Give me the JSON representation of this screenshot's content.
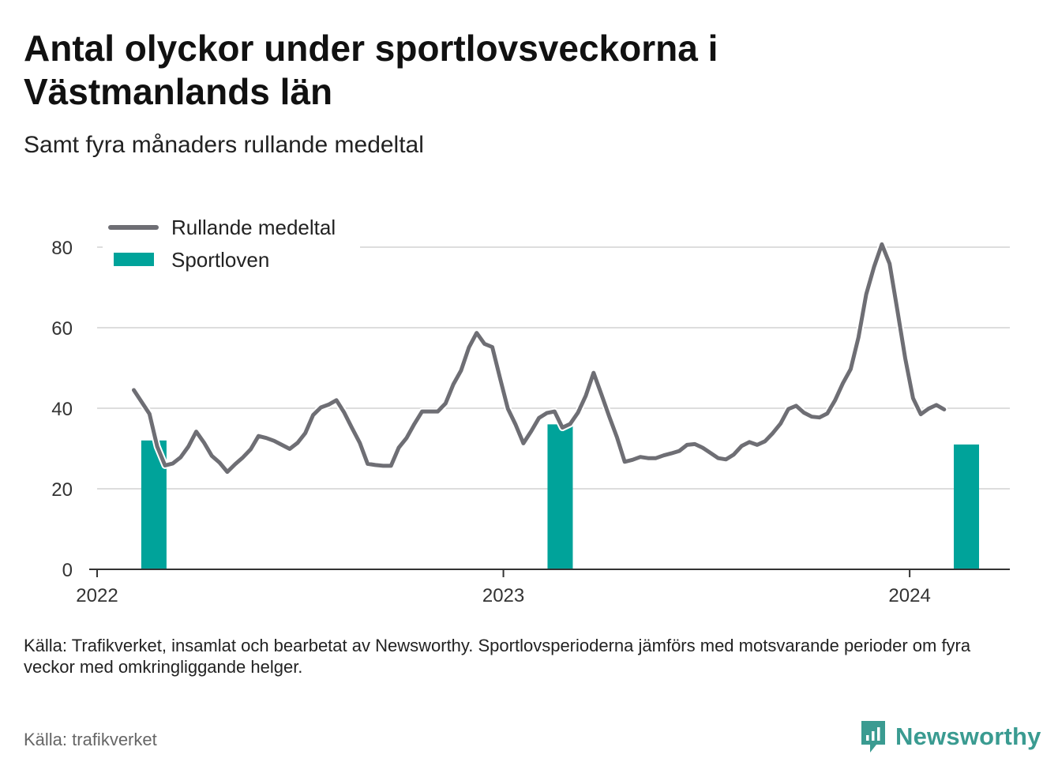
{
  "header": {
    "title": "Antal olyckor under sportlovsveckorna i Västmanlands län",
    "subtitle": "Samt fyra månaders rullande medeltal"
  },
  "footer": {
    "note": "Källa: Trafikverket, insamlat och bearbetat av Newsworthy. Sportlovsperioderna jämförs med motsvarande perioder om fyra veckor med omkringliggande helger.",
    "source": "Källa: trafikverket",
    "brand": "Newsworthy"
  },
  "colors": {
    "line": "#6e6e74",
    "bar": "#00a39a",
    "grid": "#dddddd",
    "axis": "#333333",
    "brand": "#3a9b91"
  },
  "chart_data": {
    "type": "bar+line",
    "title": "Antal olyckor under sportlovsveckorna i Västmanlands län",
    "subtitle": "Samt fyra månaders rullande medeltal",
    "xlabel": "",
    "ylabel": "",
    "ylim": [
      0,
      90
    ],
    "xlim": [
      "2022-01-01",
      "2024-03-31"
    ],
    "yticks": [
      0,
      20,
      40,
      60,
      80
    ],
    "xticks": [
      {
        "label": "2022",
        "date": "2022-01-01"
      },
      {
        "label": "2023",
        "date": "2023-01-01"
      },
      {
        "label": "2024",
        "date": "2024-01-01"
      }
    ],
    "grid": true,
    "legend_position": "top-left",
    "series": [
      {
        "name": "Rullande medeltal",
        "kind": "line",
        "color": "#6e6e74",
        "points": [
          [
            "2022-02-03",
            44.5
          ],
          [
            "2022-02-17",
            38.6
          ],
          [
            "2022-02-24",
            30.5
          ],
          [
            "2022-03-03",
            25.8
          ],
          [
            "2022-03-10",
            26.3
          ],
          [
            "2022-03-17",
            27.8
          ],
          [
            "2022-03-24",
            30.5
          ],
          [
            "2022-03-31",
            34.2
          ],
          [
            "2022-04-07",
            31.5
          ],
          [
            "2022-04-14",
            28.2
          ],
          [
            "2022-04-21",
            26.5
          ],
          [
            "2022-04-28",
            24.2
          ],
          [
            "2022-05-05",
            26.1
          ],
          [
            "2022-05-12",
            27.8
          ],
          [
            "2022-05-19",
            29.8
          ],
          [
            "2022-05-26",
            33.1
          ],
          [
            "2022-06-02",
            32.6
          ],
          [
            "2022-06-09",
            31.9
          ],
          [
            "2022-06-16",
            30.9
          ],
          [
            "2022-06-23",
            29.9
          ],
          [
            "2022-06-30",
            31.4
          ],
          [
            "2022-07-07",
            33.8
          ],
          [
            "2022-07-14",
            38.3
          ],
          [
            "2022-07-21",
            40.2
          ],
          [
            "2022-07-28",
            40.9
          ],
          [
            "2022-08-04",
            42.0
          ],
          [
            "2022-08-11",
            38.9
          ],
          [
            "2022-08-18",
            35.1
          ],
          [
            "2022-08-25",
            31.4
          ],
          [
            "2022-09-01",
            26.2
          ],
          [
            "2022-09-08",
            25.9
          ],
          [
            "2022-09-15",
            25.7
          ],
          [
            "2022-09-22",
            25.7
          ],
          [
            "2022-09-29",
            30.2
          ],
          [
            "2022-10-06",
            32.6
          ],
          [
            "2022-10-13",
            36.1
          ],
          [
            "2022-10-20",
            39.2
          ],
          [
            "2022-10-27",
            39.2
          ],
          [
            "2022-11-03",
            39.2
          ],
          [
            "2022-11-10",
            41.2
          ],
          [
            "2022-11-17",
            45.9
          ],
          [
            "2022-11-24",
            49.4
          ],
          [
            "2022-12-01",
            55.1
          ],
          [
            "2022-12-08",
            58.7
          ],
          [
            "2022-12-15",
            56.0
          ],
          [
            "2022-12-22",
            55.2
          ],
          [
            "2022-12-29",
            47.5
          ],
          [
            "2023-01-05",
            39.9
          ],
          [
            "2023-01-12",
            35.9
          ],
          [
            "2023-01-19",
            31.3
          ],
          [
            "2023-01-26",
            34.3
          ],
          [
            "2023-02-02",
            37.6
          ],
          [
            "2023-02-09",
            38.8
          ],
          [
            "2023-02-16",
            39.2
          ],
          [
            "2023-02-23",
            35.2
          ],
          [
            "2023-03-02",
            36.1
          ],
          [
            "2023-03-09",
            38.9
          ],
          [
            "2023-03-16",
            43.1
          ],
          [
            "2023-03-23",
            48.8
          ],
          [
            "2023-03-30",
            43.5
          ],
          [
            "2023-04-06",
            38.0
          ],
          [
            "2023-04-13",
            32.8
          ],
          [
            "2023-04-20",
            26.7
          ],
          [
            "2023-04-27",
            27.2
          ],
          [
            "2023-05-04",
            27.9
          ],
          [
            "2023-05-11",
            27.6
          ],
          [
            "2023-05-18",
            27.6
          ],
          [
            "2023-05-25",
            28.3
          ],
          [
            "2023-06-01",
            28.8
          ],
          [
            "2023-06-08",
            29.4
          ],
          [
            "2023-06-15",
            30.9
          ],
          [
            "2023-06-22",
            31.1
          ],
          [
            "2023-06-29",
            30.2
          ],
          [
            "2023-07-06",
            28.9
          ],
          [
            "2023-07-13",
            27.6
          ],
          [
            "2023-07-20",
            27.3
          ],
          [
            "2023-07-27",
            28.5
          ],
          [
            "2023-08-03",
            30.6
          ],
          [
            "2023-08-10",
            31.6
          ],
          [
            "2023-08-17",
            30.9
          ],
          [
            "2023-08-24",
            31.8
          ],
          [
            "2023-08-31",
            33.8
          ],
          [
            "2023-09-07",
            36.2
          ],
          [
            "2023-09-14",
            39.8
          ],
          [
            "2023-09-21",
            40.6
          ],
          [
            "2023-09-28",
            38.9
          ],
          [
            "2023-10-05",
            37.9
          ],
          [
            "2023-10-12",
            37.7
          ],
          [
            "2023-10-19",
            38.7
          ],
          [
            "2023-10-26",
            42.0
          ],
          [
            "2023-11-02",
            46.2
          ],
          [
            "2023-11-09",
            49.7
          ],
          [
            "2023-11-16",
            57.6
          ],
          [
            "2023-11-23",
            68.3
          ],
          [
            "2023-11-30",
            75.1
          ],
          [
            "2023-12-07",
            80.7
          ],
          [
            "2023-12-14",
            75.9
          ],
          [
            "2023-12-21",
            64.3
          ],
          [
            "2023-12-28",
            52.4
          ],
          [
            "2024-01-04",
            42.5
          ],
          [
            "2024-01-11",
            38.5
          ],
          [
            "2024-01-18",
            39.9
          ],
          [
            "2024-01-25",
            40.8
          ],
          [
            "2024-02-01",
            39.7
          ]
        ]
      },
      {
        "name": "Sportloven",
        "kind": "bar",
        "color": "#00a39a",
        "points": [
          [
            "2022-02-21",
            32
          ],
          [
            "2023-02-21",
            36
          ],
          [
            "2024-02-21",
            31
          ]
        ]
      }
    ]
  }
}
